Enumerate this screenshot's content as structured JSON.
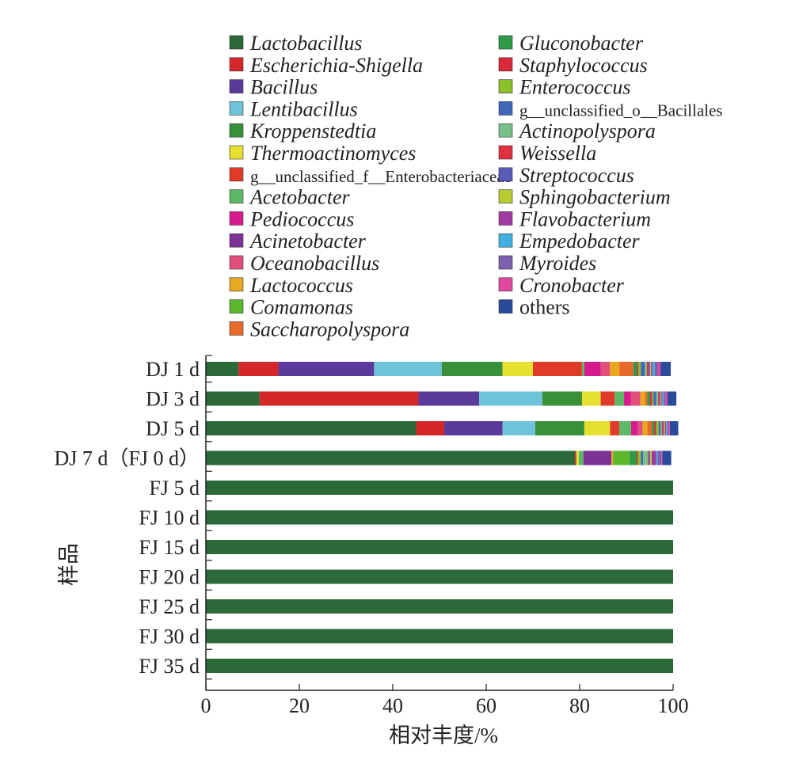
{
  "chart_data": {
    "type": "bar",
    "orientation": "horizontal",
    "stacked": true,
    "xlabel": "相对丰度/%",
    "ylabel": "样品",
    "xlim": [
      0,
      100
    ],
    "xticks": [
      "0",
      "20",
      "40",
      "60",
      "80",
      "100"
    ],
    "legend_position": "top",
    "categories": [
      "DJ 1 d",
      "DJ 3 d",
      "DJ 5 d",
      "DJ 7 d（FJ 0 d）",
      "FJ 5 d",
      "FJ 10 d",
      "FJ 15 d",
      "FJ 20 d",
      "FJ 25 d",
      "FJ 30 d",
      "FJ 35 d"
    ],
    "series": [
      {
        "name": "Lactobacillus",
        "color": "#2b6a38",
        "italic": true,
        "values": [
          7.0,
          11.5,
          45.0,
          79.0,
          100,
          100,
          100,
          100,
          100,
          100,
          100
        ]
      },
      {
        "name": "Escherichia-Shigella",
        "color": "#d62728",
        "italic": true,
        "values": [
          8.5,
          34.0,
          6.0,
          0.3,
          0,
          0,
          0,
          0,
          0,
          0,
          0
        ]
      },
      {
        "name": "Bacillus",
        "color": "#5b3a9b",
        "italic": true,
        "values": [
          20.5,
          13.0,
          12.5,
          0,
          0,
          0,
          0,
          0,
          0,
          0,
          0
        ]
      },
      {
        "name": "Lentibacillus",
        "color": "#6ec3d8",
        "italic": true,
        "values": [
          14.5,
          13.5,
          7.0,
          0,
          0,
          0,
          0,
          0,
          0,
          0,
          0
        ]
      },
      {
        "name": "Kroppenstedtia",
        "color": "#3a8f3a",
        "italic": true,
        "values": [
          13.0,
          8.5,
          10.5,
          0,
          0,
          0,
          0,
          0,
          0,
          0,
          0
        ]
      },
      {
        "name": "Thermoactinomyces",
        "color": "#e6e030",
        "italic": true,
        "values": [
          6.5,
          4.0,
          5.5,
          0.5,
          0,
          0,
          0,
          0,
          0,
          0,
          0
        ]
      },
      {
        "name": "g__unclassified_f__Enterobacteriaceae",
        "color": "#e03a28",
        "italic": false,
        "values": [
          10.5,
          3.0,
          2.0,
          0,
          0,
          0,
          0,
          0,
          0,
          0,
          0
        ]
      },
      {
        "name": "Acetobacter",
        "color": "#5cb866",
        "italic": true,
        "values": [
          0.5,
          2.0,
          2.5,
          1.0,
          0,
          0,
          0,
          0,
          0,
          0,
          0
        ]
      },
      {
        "name": "Pediococcus",
        "color": "#d81b8c",
        "italic": true,
        "values": [
          3.5,
          1.5,
          1.5,
          0,
          0,
          0,
          0,
          0,
          0,
          0,
          0
        ]
      },
      {
        "name": "Acinetobacter",
        "color": "#7b3294",
        "italic": true,
        "values": [
          0,
          0,
          0,
          6.0,
          0,
          0,
          0,
          0,
          0,
          0,
          0
        ]
      },
      {
        "name": "Oceanobacillus",
        "color": "#e0507a",
        "italic": true,
        "values": [
          2.0,
          2.0,
          1.0,
          0,
          0,
          0,
          0,
          0,
          0,
          0,
          0
        ]
      },
      {
        "name": "Lactococcus",
        "color": "#e8a820",
        "italic": true,
        "values": [
          2.0,
          1.0,
          1.0,
          0.4,
          0,
          0,
          0,
          0,
          0,
          0,
          0
        ]
      },
      {
        "name": "Comamonas",
        "color": "#5db82e",
        "italic": true,
        "values": [
          0,
          0,
          0,
          3.5,
          0,
          0,
          0,
          0,
          0,
          0,
          0
        ]
      },
      {
        "name": "Saccharopolyspora",
        "color": "#e86a2a",
        "italic": true,
        "values": [
          3.0,
          0.5,
          1.0,
          0,
          0,
          0,
          0,
          0,
          0,
          0,
          0
        ]
      },
      {
        "name": "Gluconobacter",
        "color": "#2f9a48",
        "italic": true,
        "values": [
          0.8,
          0.6,
          0.5,
          1.5,
          0,
          0,
          0,
          0,
          0,
          0,
          0
        ]
      },
      {
        "name": "Staphylococcus",
        "color": "#d8283a",
        "italic": true,
        "values": [
          0.3,
          0.4,
          0.4,
          0.3,
          0,
          0,
          0,
          0,
          0,
          0,
          0
        ]
      },
      {
        "name": "Enterococcus",
        "color": "#8ac02a",
        "italic": true,
        "values": [
          0.5,
          0.3,
          0.5,
          0.6,
          0,
          0,
          0,
          0,
          0,
          0,
          0
        ]
      },
      {
        "name": "g__unclassified_o__Bacillales",
        "color": "#3f66b8",
        "italic": false,
        "values": [
          0.8,
          0.6,
          0.4,
          0.5,
          0,
          0,
          0,
          0,
          0,
          0,
          0
        ]
      },
      {
        "name": "Actinopolyspora",
        "color": "#78c08a",
        "italic": true,
        "values": [
          0.5,
          0.4,
          0.3,
          1.0,
          0,
          0,
          0,
          0,
          0,
          0,
          0
        ]
      },
      {
        "name": "Weissella",
        "color": "#e03040",
        "italic": true,
        "values": [
          0.4,
          0.3,
          0.3,
          0.2,
          0,
          0,
          0,
          0,
          0,
          0,
          0
        ]
      },
      {
        "name": "Streptococcus",
        "color": "#5a5ab8",
        "italic": true,
        "values": [
          0.3,
          0.2,
          0.2,
          0.3,
          0,
          0,
          0,
          0,
          0,
          0,
          0
        ]
      },
      {
        "name": "Sphingobacterium",
        "color": "#b8cc30",
        "italic": true,
        "values": [
          0.2,
          0.2,
          0.2,
          0.3,
          0,
          0,
          0,
          0,
          0,
          0,
          0
        ]
      },
      {
        "name": "Flavobacterium",
        "color": "#a03aa0",
        "italic": true,
        "values": [
          0.3,
          0.2,
          0.2,
          1.0,
          0,
          0,
          0,
          0,
          0,
          0,
          0
        ]
      },
      {
        "name": "Empedobacter",
        "color": "#40b0e0",
        "italic": true,
        "values": [
          0.5,
          0.3,
          0.2,
          0.3,
          0,
          0,
          0,
          0,
          0,
          0,
          0
        ]
      },
      {
        "name": "Myroides",
        "color": "#7e60b0",
        "italic": true,
        "values": [
          0.6,
          0.4,
          0.3,
          0.8,
          0,
          0,
          0,
          0,
          0,
          0,
          0
        ]
      },
      {
        "name": "Cronobacter",
        "color": "#e048a0",
        "italic": true,
        "values": [
          0.6,
          0.4,
          0.3,
          0.2,
          0,
          0,
          0,
          0,
          0,
          0,
          0
        ]
      },
      {
        "name": "others",
        "color": "#2a4a9a",
        "italic": false,
        "values": [
          2.2,
          1.9,
          1.8,
          1.9,
          0,
          0,
          0,
          0,
          0,
          0,
          0
        ]
      }
    ]
  }
}
